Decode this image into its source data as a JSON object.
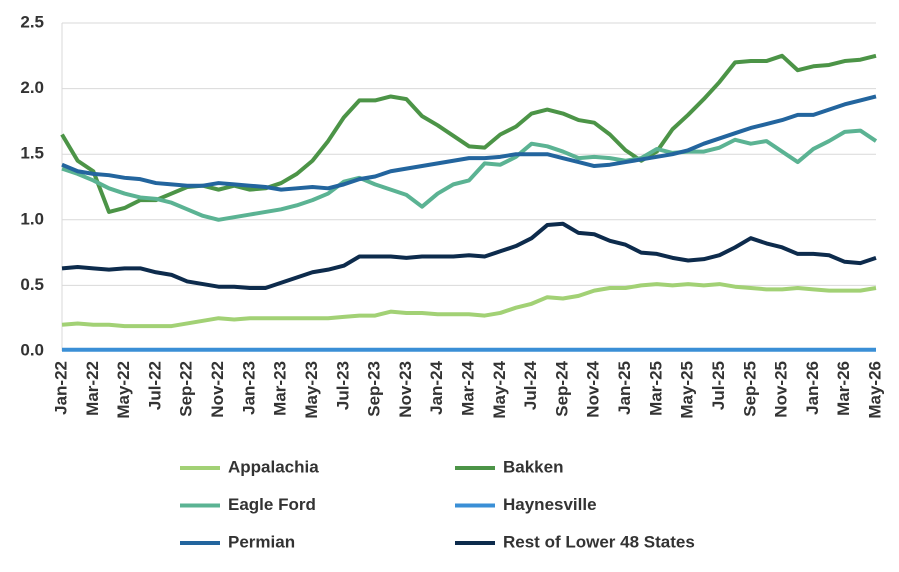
{
  "chart_data": {
    "type": "line",
    "categories": [
      "Jan-22",
      null,
      "Mar-22",
      null,
      "May-22",
      null,
      "Jul-22",
      null,
      "Sep-22",
      null,
      "Nov-22",
      null,
      "Jan-23",
      null,
      "Mar-23",
      null,
      "May-23",
      null,
      "Jul-23",
      null,
      "Sep-23",
      null,
      "Nov-23",
      null,
      "Jan-24",
      null,
      "Mar-24",
      null,
      "May-24",
      null,
      "Jul-24",
      null,
      "Sep-24",
      null,
      "Nov-24",
      null,
      "Jan-25",
      null,
      "Mar-25",
      null,
      "May-25",
      null,
      "Jul-25",
      null,
      "Sep-25",
      null,
      "Nov-25",
      null,
      "Jan-26",
      null,
      "Mar-26",
      null,
      "May-26"
    ],
    "series": [
      {
        "name": "Appalachia",
        "color": "#a2d175",
        "values": [
          0.2,
          0.21,
          0.2,
          0.2,
          0.19,
          0.19,
          0.19,
          0.19,
          0.21,
          0.23,
          0.25,
          0.24,
          0.25,
          0.25,
          0.25,
          0.25,
          0.25,
          0.25,
          0.26,
          0.27,
          0.27,
          0.3,
          0.29,
          0.29,
          0.28,
          0.28,
          0.28,
          0.27,
          0.29,
          0.33,
          0.36,
          0.41,
          0.4,
          0.42,
          0.46,
          0.48,
          0.48,
          0.5,
          0.51,
          0.5,
          0.51,
          0.5,
          0.51,
          0.49,
          0.48,
          0.47,
          0.47,
          0.48,
          0.47,
          0.46,
          0.46,
          0.46,
          0.48
        ]
      },
      {
        "name": "Bakken",
        "color": "#4c9447",
        "values": [
          1.65,
          1.45,
          1.37,
          1.06,
          1.09,
          1.15,
          1.15,
          1.2,
          1.25,
          1.26,
          1.23,
          1.26,
          1.23,
          1.24,
          1.28,
          1.35,
          1.45,
          1.6,
          1.78,
          1.91,
          1.91,
          1.94,
          1.92,
          1.79,
          1.72,
          1.64,
          1.56,
          1.55,
          1.65,
          1.71,
          1.81,
          1.84,
          1.81,
          1.76,
          1.74,
          1.65,
          1.53,
          1.45,
          1.52,
          1.69,
          1.8,
          1.92,
          2.05,
          2.2,
          2.21,
          2.21,
          2.25,
          2.14,
          2.17,
          2.18,
          2.21,
          2.22,
          2.25
        ]
      },
      {
        "name": "Eagle Ford",
        "color": "#5bb393",
        "values": [
          1.39,
          1.35,
          1.3,
          1.24,
          1.2,
          1.17,
          1.16,
          1.13,
          1.08,
          1.03,
          1.0,
          1.02,
          1.04,
          1.06,
          1.08,
          1.11,
          1.15,
          1.2,
          1.29,
          1.32,
          1.27,
          1.23,
          1.19,
          1.1,
          1.2,
          1.27,
          1.3,
          1.43,
          1.42,
          1.48,
          1.58,
          1.56,
          1.52,
          1.47,
          1.48,
          1.47,
          1.45,
          1.47,
          1.54,
          1.51,
          1.52,
          1.52,
          1.55,
          1.61,
          1.58,
          1.6,
          1.52,
          1.44,
          1.54,
          1.6,
          1.67,
          1.68,
          1.6
        ]
      },
      {
        "name": "Haynesville",
        "color": "#3a8fd6",
        "values": [
          0.01,
          0.01,
          0.01,
          0.01,
          0.01,
          0.01,
          0.01,
          0.01,
          0.01,
          0.01,
          0.01,
          0.01,
          0.01,
          0.01,
          0.01,
          0.01,
          0.01,
          0.01,
          0.01,
          0.01,
          0.01,
          0.01,
          0.01,
          0.01,
          0.01,
          0.01,
          0.01,
          0.01,
          0.01,
          0.01,
          0.01,
          0.01,
          0.01,
          0.01,
          0.01,
          0.01,
          0.01,
          0.01,
          0.01,
          0.01,
          0.01,
          0.01,
          0.01,
          0.01,
          0.01,
          0.01,
          0.01,
          0.01,
          0.01,
          0.01,
          0.01,
          0.01,
          0.01
        ]
      },
      {
        "name": "Permian",
        "color": "#23659e",
        "values": [
          1.42,
          1.37,
          1.35,
          1.34,
          1.32,
          1.31,
          1.28,
          1.27,
          1.26,
          1.26,
          1.28,
          1.27,
          1.26,
          1.25,
          1.23,
          1.24,
          1.25,
          1.24,
          1.27,
          1.31,
          1.33,
          1.37,
          1.39,
          1.41,
          1.43,
          1.45,
          1.47,
          1.47,
          1.48,
          1.5,
          1.5,
          1.5,
          1.47,
          1.44,
          1.41,
          1.42,
          1.44,
          1.46,
          1.48,
          1.5,
          1.53,
          1.58,
          1.62,
          1.66,
          1.7,
          1.73,
          1.76,
          1.8,
          1.8,
          1.84,
          1.88,
          1.91,
          1.94
        ]
      },
      {
        "name": "Rest of Lower 48 States",
        "color": "#0d2b4c",
        "values": [
          0.63,
          0.64,
          0.63,
          0.62,
          0.63,
          0.63,
          0.6,
          0.58,
          0.53,
          0.51,
          0.49,
          0.49,
          0.48,
          0.48,
          0.52,
          0.56,
          0.6,
          0.62,
          0.65,
          0.72,
          0.72,
          0.72,
          0.71,
          0.72,
          0.72,
          0.72,
          0.73,
          0.72,
          0.76,
          0.8,
          0.86,
          0.96,
          0.97,
          0.9,
          0.89,
          0.84,
          0.81,
          0.75,
          0.74,
          0.71,
          0.69,
          0.7,
          0.73,
          0.79,
          0.86,
          0.82,
          0.79,
          0.74,
          0.74,
          0.73,
          0.68,
          0.67,
          0.71
        ]
      }
    ],
    "ylim": [
      0,
      2.5
    ],
    "yticks": [
      {
        "value": 0,
        "label": "0.0"
      },
      0.5,
      {
        "value": 1,
        "label": "1.0"
      },
      1.5,
      {
        "value": 2,
        "label": "2.0"
      },
      2.5
    ],
    "grid": true
  }
}
